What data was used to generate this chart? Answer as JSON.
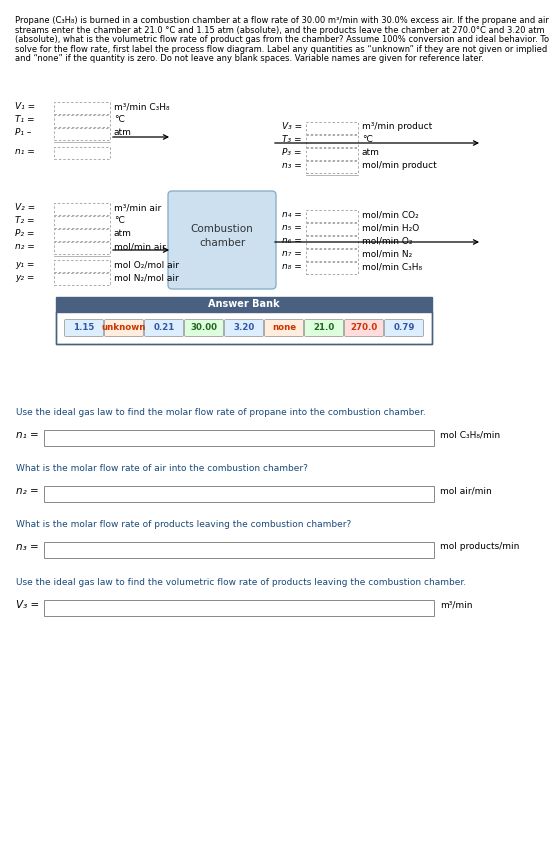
{
  "title_lines": [
    "Propane (C₃H₈) is burned in a combustion chamber at a flow rate of 30.00 m³/min with 30.0% excess air. If the propane and air",
    "streams enter the chamber at 21.0 °C and 1.15 atm (absolute), and the products leave the chamber at 270.0°C and 3.20 atm",
    "(absolute), what is the volumetric flow rate of product gas from the chamber? Assume 100% conversion and ideal behavior. To",
    "solve for the flow rate, first label the process flow diagram. Label any quantities as “unknown” if they are not given or implied",
    "and “none” if the quantity is zero. Do not leave any blank spaces. Variable names are given for reference later."
  ],
  "left_top_vars": [
    "V₁ =",
    "T₁ =",
    "P₁ –",
    "",
    "n₁ ="
  ],
  "left_top_units": [
    "m³/min C₃H₈",
    "°C",
    "atm",
    "",
    ""
  ],
  "left_bot_vars": [
    "V₂ =",
    "T₂ =",
    "P₂ =",
    "n₂ =",
    "",
    "y₁ =",
    "y₂ ="
  ],
  "left_bot_units": [
    "m³/min air",
    "°C",
    "atm",
    "mol/min air",
    "",
    "mol O₂/mol air",
    "mol N₂/mol air"
  ],
  "right_top_vars": [
    "V₃ =",
    "T₃ =",
    "P₃ =",
    "n₃ ="
  ],
  "right_top_units": [
    "m³/min product",
    "°C",
    "atm",
    "mol/min product"
  ],
  "right_bot_vars": [
    "n₄ =",
    "n₅ =",
    "n₆ =",
    "n₇ =",
    "n₈ ="
  ],
  "right_bot_units": [
    "mol/min CO₂",
    "mol/min H₂O",
    "mol/min O₂",
    "mol/min N₂",
    "mol/min C₃H₈"
  ],
  "combustion_label": "Combustion\nchamber",
  "answer_bank_title": "Answer Bank",
  "answer_bank_items": [
    "1.15",
    "unknown",
    "0.21",
    "30.00",
    "3.20",
    "none",
    "21.0",
    "270.0",
    "0.79"
  ],
  "answer_item_colors": {
    "1.15": [
      "#ddeeff",
      "#3355aa"
    ],
    "unknown": [
      "#ffeedd",
      "#cc3300"
    ],
    "0.21": [
      "#ddeeff",
      "#3355aa"
    ],
    "30.00": [
      "#ddffdd",
      "#226622"
    ],
    "3.20": [
      "#ddeeff",
      "#3355aa"
    ],
    "none": [
      "#ffeedd",
      "#cc3300"
    ],
    "21.0": [
      "#ddffdd",
      "#226622"
    ],
    "270.0": [
      "#ffdddd",
      "#cc3300"
    ],
    "0.79": [
      "#ddeeff",
      "#3355aa"
    ]
  },
  "s1_title": "Use the ideal gas law to find the molar flow rate of propane into the combustion chamber.",
  "s1_var": "n₁ =",
  "s1_unit": "mol C₃H₈/min",
  "s2_title": "What is the molar flow rate of air into the combustion chamber?",
  "s2_var": "n₂ =",
  "s2_unit": "mol air/min",
  "s3_title": "What is the molar flow rate of products leaving the combustion chamber?",
  "s3_var": "n₃ =",
  "s3_unit": "mol products/min",
  "s4_title": "Use the ideal gas law to find the volumetric flow rate of products leaving the combustion chamber.",
  "s4_var": "V₃ =",
  "s4_unit": "m³/min",
  "title_color": "#000000",
  "label_color": "#000000",
  "blue_color": "#1a4a7a",
  "chamber_fill": "#cce0f0",
  "chamber_edge": "#8ab0cc",
  "ab_header_fill": "#4a6080",
  "ab_header_text": "#ffffff",
  "ab_border": "#4a6080",
  "input_edge": "#999999",
  "bg": "#ffffff"
}
